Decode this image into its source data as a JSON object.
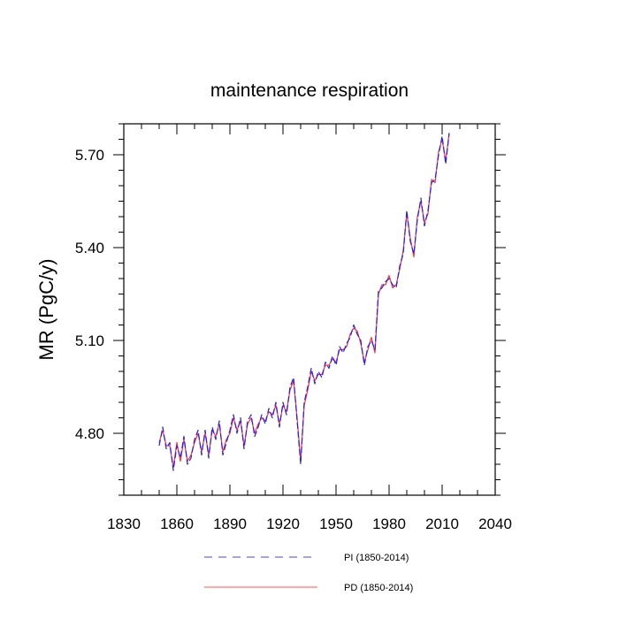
{
  "chart_data": {
    "type": "line",
    "title": "maintenance respiration",
    "xlabel": "",
    "ylabel": "MR  (PgC/y)",
    "xlim": [
      1830,
      2040
    ],
    "ylim": [
      4.6,
      5.8
    ],
    "xticks": [
      1830,
      1860,
      1890,
      1920,
      1950,
      1980,
      2010,
      2040
    ],
    "yticks": [
      4.8,
      5.1,
      5.4,
      5.7
    ],
    "ytick_labels": [
      "4.80",
      "5.10",
      "5.40",
      "5.70"
    ],
    "grid": false,
    "legend_position": "bottom-center",
    "x": [
      1850,
      1852,
      1854,
      1856,
      1858,
      1860,
      1862,
      1864,
      1866,
      1868,
      1870,
      1872,
      1874,
      1876,
      1878,
      1880,
      1882,
      1884,
      1886,
      1888,
      1890,
      1892,
      1894,
      1896,
      1898,
      1900,
      1902,
      1904,
      1906,
      1908,
      1910,
      1912,
      1914,
      1916,
      1918,
      1920,
      1922,
      1924,
      1926,
      1928,
      1930,
      1932,
      1934,
      1936,
      1938,
      1940,
      1942,
      1944,
      1946,
      1948,
      1950,
      1952,
      1954,
      1956,
      1958,
      1960,
      1962,
      1964,
      1966,
      1968,
      1970,
      1972,
      1974,
      1976,
      1978,
      1980,
      1982,
      1984,
      1986,
      1988,
      1990,
      1992,
      1994,
      1996,
      1998,
      2000,
      2002,
      2004,
      2006,
      2008,
      2010,
      2012,
      2014
    ],
    "series": [
      {
        "name": "PI (1850-2014)",
        "color": "#2222ee",
        "values": [
          4.76,
          4.82,
          4.75,
          4.77,
          4.68,
          4.76,
          4.72,
          4.79,
          4.7,
          4.72,
          4.78,
          4.81,
          4.73,
          4.81,
          4.72,
          4.82,
          4.78,
          4.84,
          4.73,
          4.77,
          4.81,
          4.86,
          4.8,
          4.85,
          4.75,
          4.84,
          4.86,
          4.79,
          4.82,
          4.86,
          4.83,
          4.88,
          4.85,
          4.9,
          4.82,
          4.9,
          4.86,
          4.95,
          4.98,
          4.84,
          4.7,
          4.9,
          4.95,
          5.01,
          4.96,
          5.0,
          4.98,
          5.03,
          5.01,
          5.05,
          5.02,
          5.08,
          5.06,
          5.09,
          5.11,
          5.15,
          5.12,
          5.1,
          5.02,
          5.08,
          5.1,
          5.07,
          5.26,
          5.27,
          5.29,
          5.3,
          5.28,
          5.27,
          5.34,
          5.38,
          5.52,
          5.42,
          5.38,
          5.49,
          5.56,
          5.47,
          5.52,
          5.61,
          5.62,
          5.7,
          5.76,
          5.67,
          5.77
        ]
      },
      {
        "name": "PD (1850-2014)",
        "color": "#ff3333",
        "values": [
          4.77,
          4.81,
          4.76,
          4.76,
          4.69,
          4.77,
          4.71,
          4.78,
          4.71,
          4.73,
          4.77,
          4.8,
          4.74,
          4.8,
          4.73,
          4.81,
          4.79,
          4.83,
          4.74,
          4.78,
          4.8,
          4.85,
          4.81,
          4.84,
          4.76,
          4.83,
          4.85,
          4.8,
          4.83,
          4.85,
          4.84,
          4.87,
          4.86,
          4.89,
          4.83,
          4.89,
          4.87,
          4.94,
          4.97,
          4.85,
          4.71,
          4.89,
          4.94,
          5.0,
          4.97,
          4.99,
          4.99,
          5.02,
          5.02,
          5.04,
          5.03,
          5.07,
          5.07,
          5.08,
          5.12,
          5.14,
          5.13,
          5.09,
          5.03,
          5.07,
          5.11,
          5.06,
          5.25,
          5.28,
          5.28,
          5.31,
          5.27,
          5.28,
          5.33,
          5.39,
          5.51,
          5.43,
          5.37,
          5.5,
          5.55,
          5.48,
          5.51,
          5.62,
          5.61,
          5.71,
          5.75,
          5.68,
          5.77
        ]
      }
    ]
  }
}
